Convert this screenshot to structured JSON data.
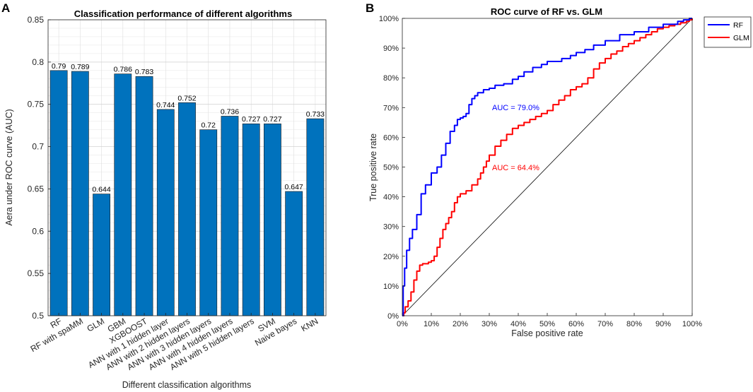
{
  "panels": {
    "a": "A",
    "b": "B"
  },
  "chart_data": [
    {
      "type": "bar",
      "title": "Classification performance of different algorithms",
      "xlabel": "Different classification algorithms",
      "ylabel": "Aera under ROC curve (AUC)",
      "ylim": [
        0.5,
        0.85
      ],
      "yticks": [
        0.5,
        0.55,
        0.6,
        0.65,
        0.7,
        0.75,
        0.8,
        0.85
      ],
      "grid": true,
      "color": "#0072BD",
      "categories": [
        "RF",
        "RF with spaMM",
        "GLM",
        "GBM",
        "XGBOOST",
        "ANN with 1 hidden layer",
        "ANN with 2 hidden layers",
        "ANN with 3 hidden layers",
        "ANN with 4 hidden layers",
        "ANN with 5 hidden layers",
        "SVM",
        "Naive bayes",
        "KNN"
      ],
      "values": [
        0.79,
        0.789,
        0.644,
        0.786,
        0.783,
        0.744,
        0.752,
        0.72,
        0.736,
        0.727,
        0.727,
        0.647,
        0.733
      ],
      "labels": [
        "0.79",
        "0.789",
        "0.644",
        "0.786",
        "0.783",
        "0.744",
        "0.752",
        "0.72",
        "0.736",
        "0.727",
        "0.727",
        "0.647",
        "0.733"
      ]
    },
    {
      "type": "line",
      "title": "ROC curve of RF vs. GLM",
      "xlabel": "False positive rate",
      "ylabel": "True positive rate",
      "xlim": [
        0,
        100
      ],
      "ylim": [
        0,
        100
      ],
      "xticks": [
        "0%",
        "10%",
        "20%",
        "30%",
        "40%",
        "50%",
        "60%",
        "70%",
        "80%",
        "90%",
        "100%"
      ],
      "yticks": [
        "0%",
        "10%",
        "20%",
        "30%",
        "40%",
        "50%",
        "60%",
        "70%",
        "80%",
        "90%",
        "100%"
      ],
      "grid": false,
      "legend_position": "outside-top-right",
      "series": [
        {
          "name": "RF",
          "color": "#0000FF",
          "annotation": "AUC = 79.0%",
          "x": [
            0,
            0.3,
            0.8,
            1.5,
            2.5,
            3.5,
            5,
            6.5,
            8,
            10,
            12,
            13.5,
            15,
            16.5,
            18,
            19,
            20,
            21,
            22,
            23,
            24,
            25,
            26,
            28,
            30,
            32,
            35,
            38,
            40,
            42,
            45,
            48,
            50,
            55,
            58,
            60,
            63,
            66,
            70,
            75,
            80,
            85,
            90,
            95,
            97,
            99,
            100
          ],
          "y": [
            0,
            10,
            16,
            22,
            26,
            29,
            34,
            41,
            44,
            48,
            50,
            54,
            58,
            62,
            64,
            66,
            66.5,
            67,
            68,
            71,
            73,
            74,
            75,
            76,
            76.5,
            77.5,
            78,
            79.5,
            80.5,
            82,
            83.5,
            84.5,
            85.5,
            86.5,
            87.5,
            88.5,
            89.5,
            91,
            92.5,
            94.5,
            95.5,
            97,
            98,
            99,
            99.5,
            100,
            100
          ]
        },
        {
          "name": "GLM",
          "color": "#FF0000",
          "annotation": "AUC = 64.4%",
          "x": [
            0,
            0.5,
            1,
            2,
            3,
            4,
            5,
            6,
            7,
            9,
            10,
            11,
            12,
            13,
            14,
            15,
            16,
            17,
            18,
            19,
            20,
            22,
            24,
            26,
            27,
            28,
            29,
            30,
            32,
            34,
            36,
            38,
            40,
            42,
            44,
            46,
            48,
            50,
            52,
            54,
            56,
            58,
            60,
            62,
            64,
            66,
            68,
            70,
            72,
            74,
            76,
            78,
            80,
            82,
            84,
            86,
            88,
            90,
            92,
            94,
            96,
            98,
            99,
            100
          ],
          "y": [
            0,
            1,
            3,
            5,
            8,
            12,
            15,
            17,
            17.5,
            18,
            18.5,
            20,
            23,
            26,
            29,
            31,
            33,
            35,
            38,
            40,
            41,
            42,
            44,
            46,
            48,
            50,
            52,
            54,
            57,
            59,
            61,
            63,
            64,
            65,
            66,
            67,
            68,
            69,
            71,
            72.5,
            74,
            76,
            77,
            78,
            80,
            83,
            85,
            86.5,
            88,
            89,
            90.5,
            91.5,
            92.5,
            93.5,
            94.5,
            95.5,
            96.5,
            97,
            97.5,
            98,
            98.5,
            99,
            99.5,
            100
          ]
        },
        {
          "name": "",
          "color": "#000000",
          "x": [
            0,
            100
          ],
          "y": [
            0,
            100
          ]
        }
      ]
    }
  ]
}
